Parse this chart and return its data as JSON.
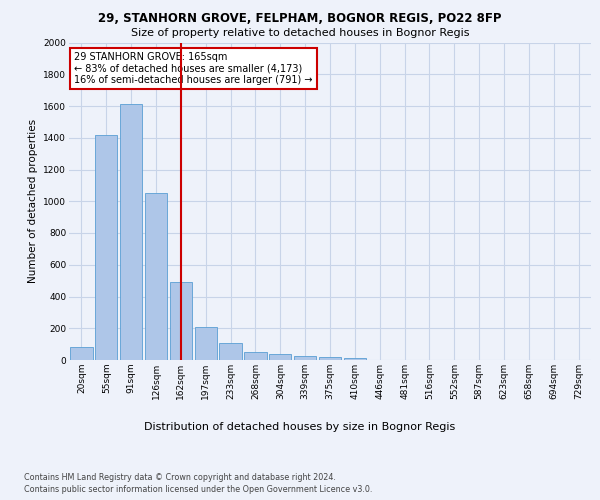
{
  "title_line1": "29, STANHORN GROVE, FELPHAM, BOGNOR REGIS, PO22 8FP",
  "title_line2": "Size of property relative to detached houses in Bognor Regis",
  "xlabel": "Distribution of detached houses by size in Bognor Regis",
  "ylabel": "Number of detached properties",
  "categories": [
    "20sqm",
    "55sqm",
    "91sqm",
    "126sqm",
    "162sqm",
    "197sqm",
    "233sqm",
    "268sqm",
    "304sqm",
    "339sqm",
    "375sqm",
    "410sqm",
    "446sqm",
    "481sqm",
    "516sqm",
    "552sqm",
    "587sqm",
    "623sqm",
    "658sqm",
    "694sqm",
    "729sqm"
  ],
  "values": [
    80,
    1420,
    1610,
    1050,
    490,
    205,
    105,
    50,
    40,
    25,
    20,
    10,
    0,
    0,
    0,
    0,
    0,
    0,
    0,
    0,
    0
  ],
  "bar_color": "#aec6e8",
  "bar_edge_color": "#5a9fd4",
  "vline_x_idx": 4,
  "vline_color": "#cc0000",
  "annotation_text": "29 STANHORN GROVE: 165sqm\n← 83% of detached houses are smaller (4,173)\n16% of semi-detached houses are larger (791) →",
  "annotation_box_color": "#ffffff",
  "annotation_box_edge": "#cc0000",
  "ylim": [
    0,
    2000
  ],
  "yticks": [
    0,
    200,
    400,
    600,
    800,
    1000,
    1200,
    1400,
    1600,
    1800,
    2000
  ],
  "footer_line1": "Contains HM Land Registry data © Crown copyright and database right 2024.",
  "footer_line2": "Contains public sector information licensed under the Open Government Licence v3.0.",
  "background_color": "#eef2fa",
  "plot_bg_color": "#eef2fa",
  "grid_color": "#c8d4e8",
  "title1_fontsize": 8.5,
  "title2_fontsize": 8.0,
  "ylabel_fontsize": 7.5,
  "xlabel_fontsize": 8.0,
  "tick_fontsize": 6.5,
  "footer_fontsize": 5.8,
  "annot_fontsize": 7.0
}
